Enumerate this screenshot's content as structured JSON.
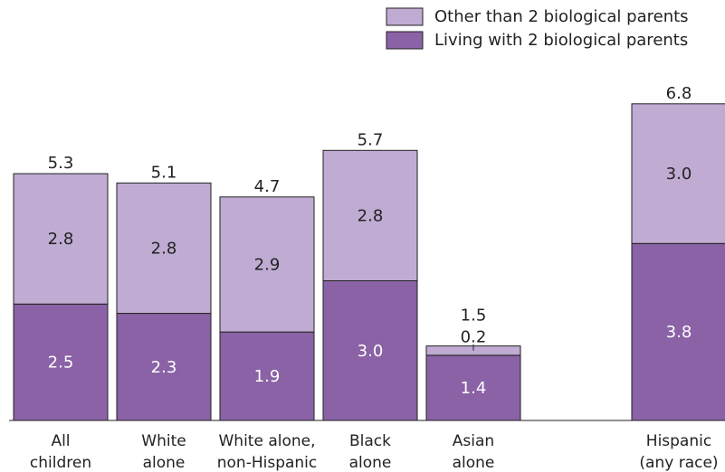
{
  "chart_data": {
    "type": "bar",
    "stacked": true,
    "categories": [
      [
        "All",
        "children"
      ],
      [
        "White",
        "alone"
      ],
      [
        "White alone,",
        "non-Hispanic"
      ],
      [
        "Black",
        "alone"
      ],
      [
        "Asian",
        "alone"
      ],
      [
        "Hispanic",
        "(any race)"
      ]
    ],
    "series": [
      {
        "name": "Living with 2 biological parents",
        "values": [
          2.5,
          2.3,
          1.9,
          3.0,
          1.4,
          3.8
        ],
        "color": "#8a62a5"
      },
      {
        "name": "Other than 2 biological parents",
        "values": [
          2.8,
          2.8,
          2.9,
          2.8,
          0.2,
          3.0
        ],
        "color": "#c0abd3"
      }
    ],
    "totals": [
      5.3,
      5.1,
      4.7,
      5.7,
      1.5,
      6.8
    ],
    "ylim": [
      0,
      8
    ],
    "legend_position": "top-right",
    "grid": false,
    "title": "",
    "xlabel": "",
    "ylabel": ""
  }
}
